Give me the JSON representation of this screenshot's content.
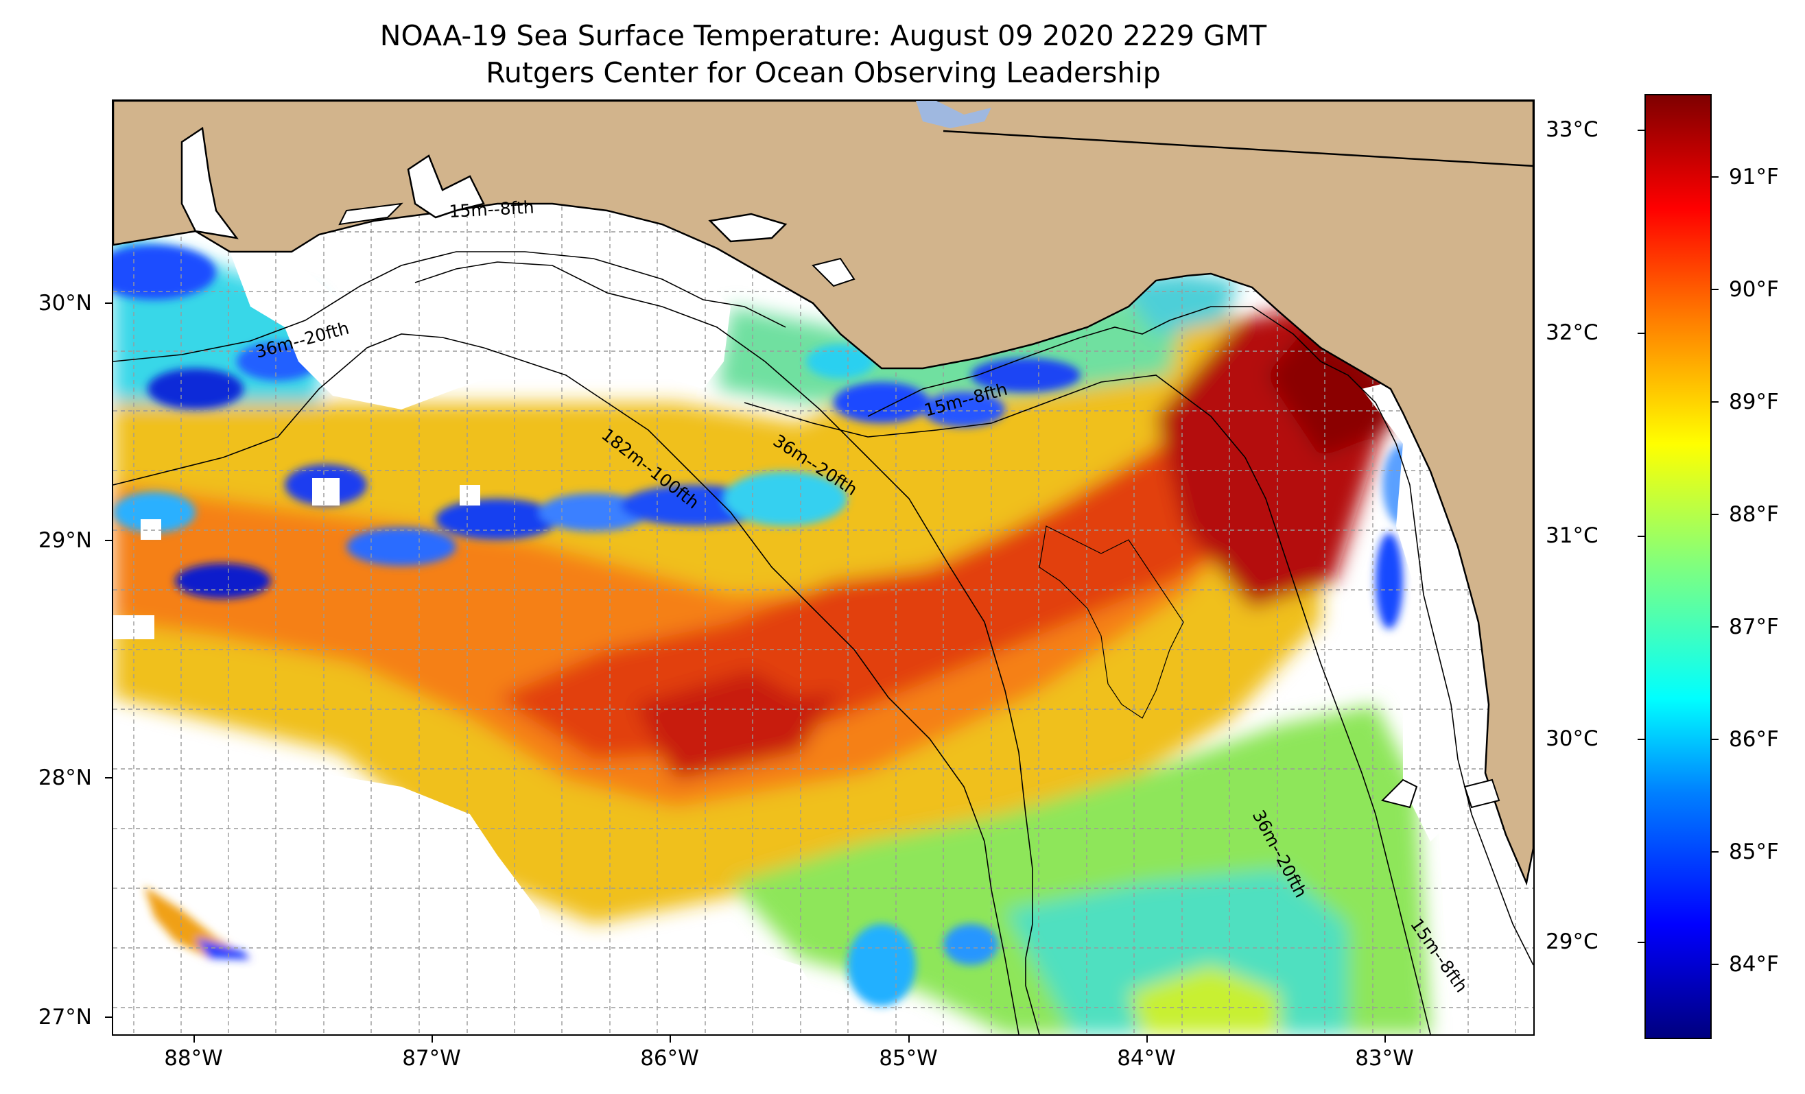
{
  "title": {
    "line1": "NOAA-19 Sea Surface Temperature: August 09 2020 2229 GMT",
    "line2": "Rutgers Center for Ocean Observing Leadership"
  },
  "map": {
    "lon_range": [
      -88.35,
      -82.4
    ],
    "lat_range": [
      26.92,
      30.85
    ],
    "lat_labels": [
      "30°N",
      "29°N",
      "28°N",
      "27°N"
    ],
    "lon_labels": [
      "88°W",
      "87°W",
      "86°W",
      "85°W",
      "84°W",
      "83°W"
    ],
    "isobath_labels": [
      "15m--8fth",
      "36m--20fth",
      "182m--100fth",
      "36m--20fth",
      "15m--8fth",
      "36m--20fth",
      "15m--8fth"
    ],
    "gridlines": true,
    "land_color": "#d2b48c",
    "colormap": "jet"
  },
  "colorbar": {
    "celsius_labels": [
      "33°C",
      "32°C",
      "31°C",
      "30°C",
      "29°C"
    ],
    "fahrenheit_labels": [
      "91°F",
      "90°F",
      "89°F",
      "88°F",
      "87°F",
      "86°F",
      "85°F",
      "84°F"
    ],
    "celsius_range": [
      28.5,
      33.2
    ]
  }
}
